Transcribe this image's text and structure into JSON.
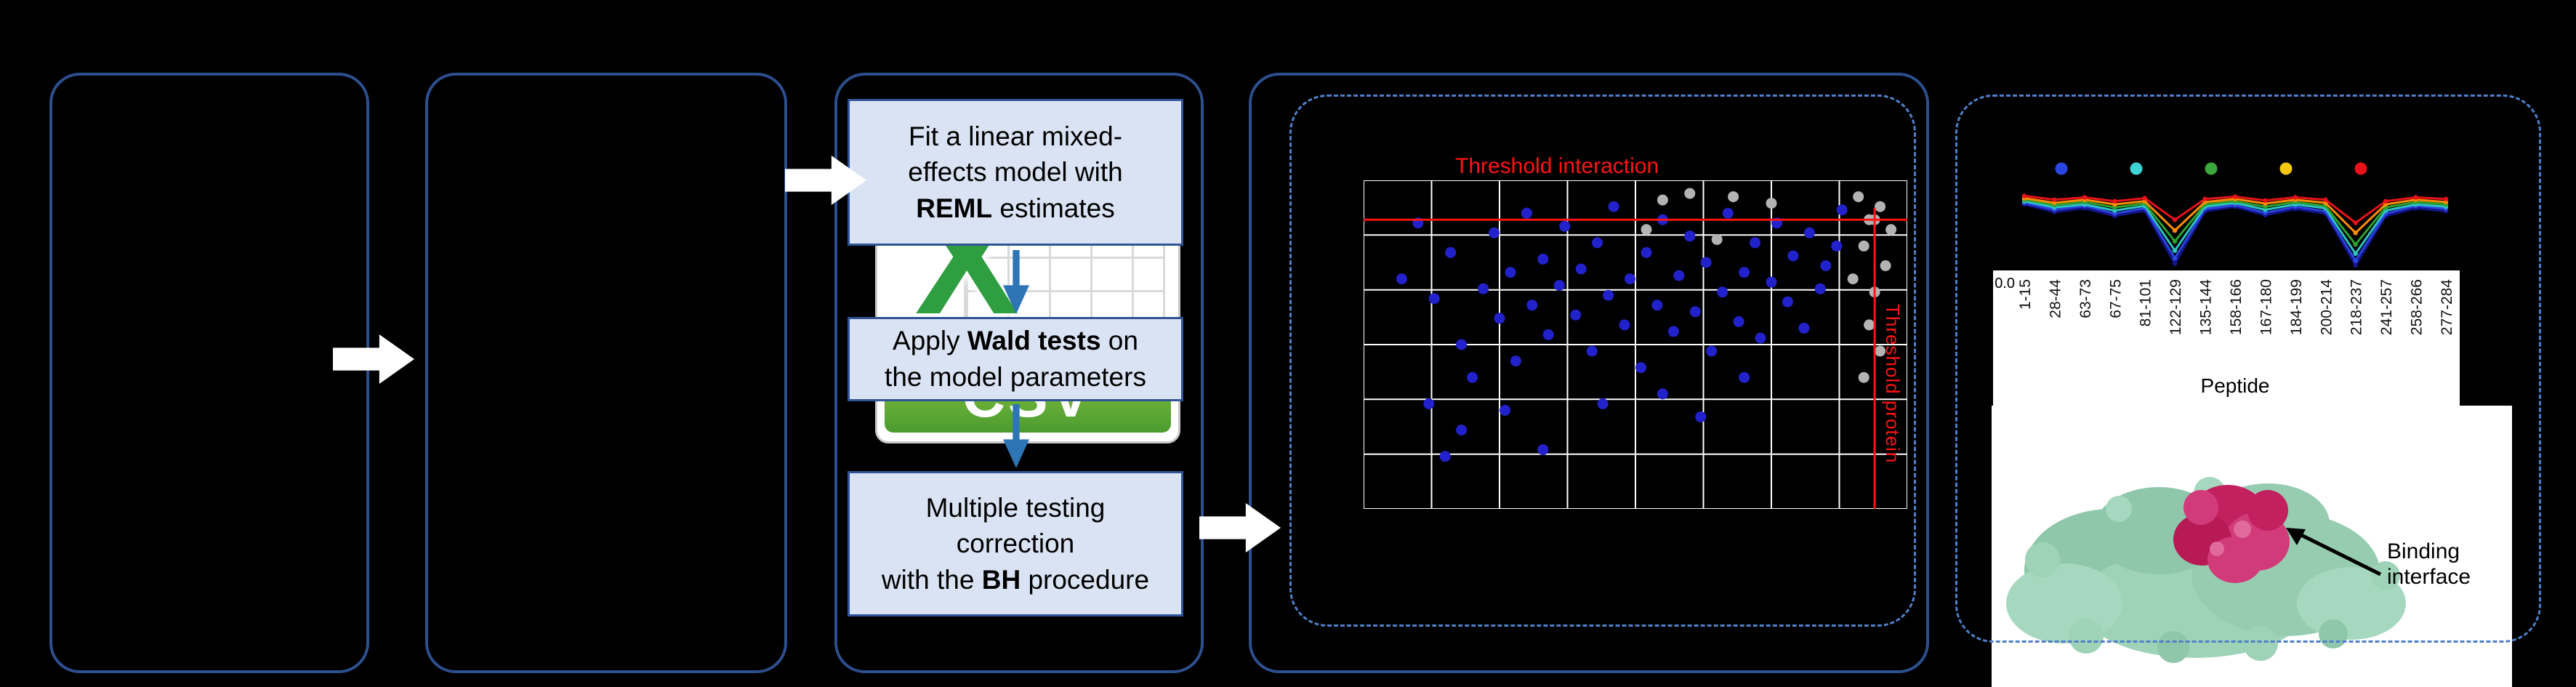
{
  "figure": {
    "colors": {
      "panel_border": "#2e4f8f",
      "dashed_border": "#4f7fc8",
      "step_fill": "#dae3f3",
      "step_border": "#2f5496",
      "flow_arrow": "#ffffff",
      "down_arrow": "#2e75b6",
      "threshold_red": "#ff1414"
    },
    "csv_icon": {
      "x": "X",
      "label": "CSV"
    },
    "steps": {
      "step1": {
        "line1": "Fit a linear mixed-",
        "line2": "effects model with",
        "bold": "REML",
        "after_bold": " estimates"
      },
      "step2": {
        "before_bold": "Apply ",
        "bold": "Wald tests",
        "after_bold": " on",
        "line2": "the model parameters"
      },
      "step3": {
        "line1": "Multiple testing",
        "line2": "correction",
        "before_bold": "with the ",
        "bold": "BH",
        "after_bold": " procedure"
      }
    },
    "annotations": {
      "binding_interface": "Binding interface"
    }
  },
  "chart_data": [
    {
      "type": "scatter",
      "title": "Threshold interaction",
      "plot_bg": "#000000",
      "grid": true,
      "grid_color": "#ffffff",
      "grid_cols": 8,
      "grid_rows": 6,
      "coords": "fraction of plot area, y measured from top",
      "thresholds": {
        "color": "#ff1414",
        "interaction_y": 0.12,
        "protein_x": 0.94,
        "top_label": "Threshold interaction",
        "right_label": "Threshold protein"
      },
      "series": [
        {
          "name": "interaction",
          "color": "#2222cc",
          "points": [
            [
              0.07,
              0.3
            ],
            [
              0.1,
              0.13
            ],
            [
              0.13,
              0.36
            ],
            [
              0.16,
              0.22
            ],
            [
              0.18,
              0.5
            ],
            [
              0.2,
              0.6
            ],
            [
              0.22,
              0.33
            ],
            [
              0.24,
              0.16
            ],
            [
              0.25,
              0.42
            ],
            [
              0.27,
              0.28
            ],
            [
              0.28,
              0.55
            ],
            [
              0.3,
              0.1
            ],
            [
              0.31,
              0.38
            ],
            [
              0.33,
              0.24
            ],
            [
              0.34,
              0.47
            ],
            [
              0.36,
              0.32
            ],
            [
              0.37,
              0.14
            ],
            [
              0.39,
              0.41
            ],
            [
              0.4,
              0.27
            ],
            [
              0.42,
              0.52
            ],
            [
              0.43,
              0.19
            ],
            [
              0.45,
              0.35
            ],
            [
              0.46,
              0.08
            ],
            [
              0.48,
              0.44
            ],
            [
              0.49,
              0.3
            ],
            [
              0.51,
              0.57
            ],
            [
              0.52,
              0.22
            ],
            [
              0.54,
              0.38
            ],
            [
              0.55,
              0.12
            ],
            [
              0.57,
              0.46
            ],
            [
              0.58,
              0.29
            ],
            [
              0.6,
              0.17
            ],
            [
              0.61,
              0.4
            ],
            [
              0.63,
              0.25
            ],
            [
              0.64,
              0.52
            ],
            [
              0.66,
              0.34
            ],
            [
              0.67,
              0.1
            ],
            [
              0.69,
              0.43
            ],
            [
              0.7,
              0.28
            ],
            [
              0.72,
              0.19
            ],
            [
              0.73,
              0.48
            ],
            [
              0.75,
              0.31
            ],
            [
              0.76,
              0.13
            ],
            [
              0.78,
              0.37
            ],
            [
              0.79,
              0.23
            ],
            [
              0.81,
              0.45
            ],
            [
              0.82,
              0.16
            ],
            [
              0.84,
              0.33
            ],
            [
              0.85,
              0.26
            ],
            [
              0.87,
              0.2
            ],
            [
              0.12,
              0.68
            ],
            [
              0.18,
              0.76
            ],
            [
              0.26,
              0.7
            ],
            [
              0.33,
              0.82
            ],
            [
              0.15,
              0.84
            ],
            [
              0.55,
              0.65
            ],
            [
              0.62,
              0.72
            ],
            [
              0.44,
              0.68
            ],
            [
              0.7,
              0.6
            ],
            [
              0.88,
              0.09
            ]
          ]
        },
        {
          "name": "protein",
          "color": "#b3b3b3",
          "points": [
            [
              0.91,
              0.05
            ],
            [
              0.93,
              0.12
            ],
            [
              0.95,
              0.08
            ],
            [
              0.92,
              0.2
            ],
            [
              0.96,
              0.26
            ],
            [
              0.94,
              0.34
            ],
            [
              0.97,
              0.15
            ],
            [
              0.93,
              0.44
            ],
            [
              0.95,
              0.52
            ],
            [
              0.92,
              0.6
            ],
            [
              0.9,
              0.3
            ],
            [
              0.94,
              0.12
            ],
            [
              0.55,
              0.06
            ],
            [
              0.6,
              0.04
            ],
            [
              0.75,
              0.07
            ],
            [
              0.68,
              0.05
            ],
            [
              0.52,
              0.15
            ],
            [
              0.65,
              0.18
            ]
          ]
        }
      ]
    },
    {
      "type": "line",
      "categories": [
        "1-15",
        "28-44",
        "63-73",
        "67-75",
        "81-101",
        "122-129",
        "135-144",
        "158-166",
        "167-180",
        "184-199",
        "200-214",
        "218-237",
        "241-257",
        "258-266",
        "277-284"
      ],
      "xlabel": "Peptide",
      "ytick_labels": [
        "0.0"
      ],
      "ylim": [
        0,
        1
      ],
      "legend_dot_colors": [
        "#2a46e0",
        "#3fd4d4",
        "#3aa83a",
        "#f4c80e",
        "#e81219"
      ],
      "series": [
        {
          "name": "red",
          "color": "#e81219",
          "values": [
            0.93,
            0.88,
            0.91,
            0.86,
            0.9,
            0.62,
            0.89,
            0.92,
            0.87,
            0.91,
            0.88,
            0.58,
            0.86,
            0.91,
            0.89
          ]
        },
        {
          "name": "orange",
          "color": "#ff8c00",
          "values": [
            0.9,
            0.84,
            0.88,
            0.82,
            0.86,
            0.48,
            0.85,
            0.89,
            0.83,
            0.88,
            0.84,
            0.45,
            0.82,
            0.88,
            0.85
          ]
        },
        {
          "name": "green",
          "color": "#2ea12e",
          "values": [
            0.88,
            0.81,
            0.85,
            0.78,
            0.83,
            0.34,
            0.82,
            0.86,
            0.79,
            0.85,
            0.8,
            0.3,
            0.78,
            0.85,
            0.82
          ]
        },
        {
          "name": "teal",
          "color": "#2ec4c4",
          "values": [
            0.86,
            0.78,
            0.82,
            0.74,
            0.8,
            0.22,
            0.79,
            0.84,
            0.75,
            0.82,
            0.77,
            0.18,
            0.74,
            0.82,
            0.79
          ]
        },
        {
          "name": "blue",
          "color": "#2a46e0",
          "values": [
            0.84,
            0.75,
            0.8,
            0.7,
            0.77,
            0.12,
            0.76,
            0.81,
            0.71,
            0.79,
            0.73,
            0.09,
            0.7,
            0.8,
            0.76
          ]
        },
        {
          "name": "navy",
          "color": "#151591",
          "values": [
            0.82,
            0.72,
            0.77,
            0.67,
            0.74,
            0.05,
            0.73,
            0.79,
            0.68,
            0.76,
            0.7,
            0.03,
            0.67,
            0.77,
            0.73
          ]
        }
      ]
    }
  ]
}
